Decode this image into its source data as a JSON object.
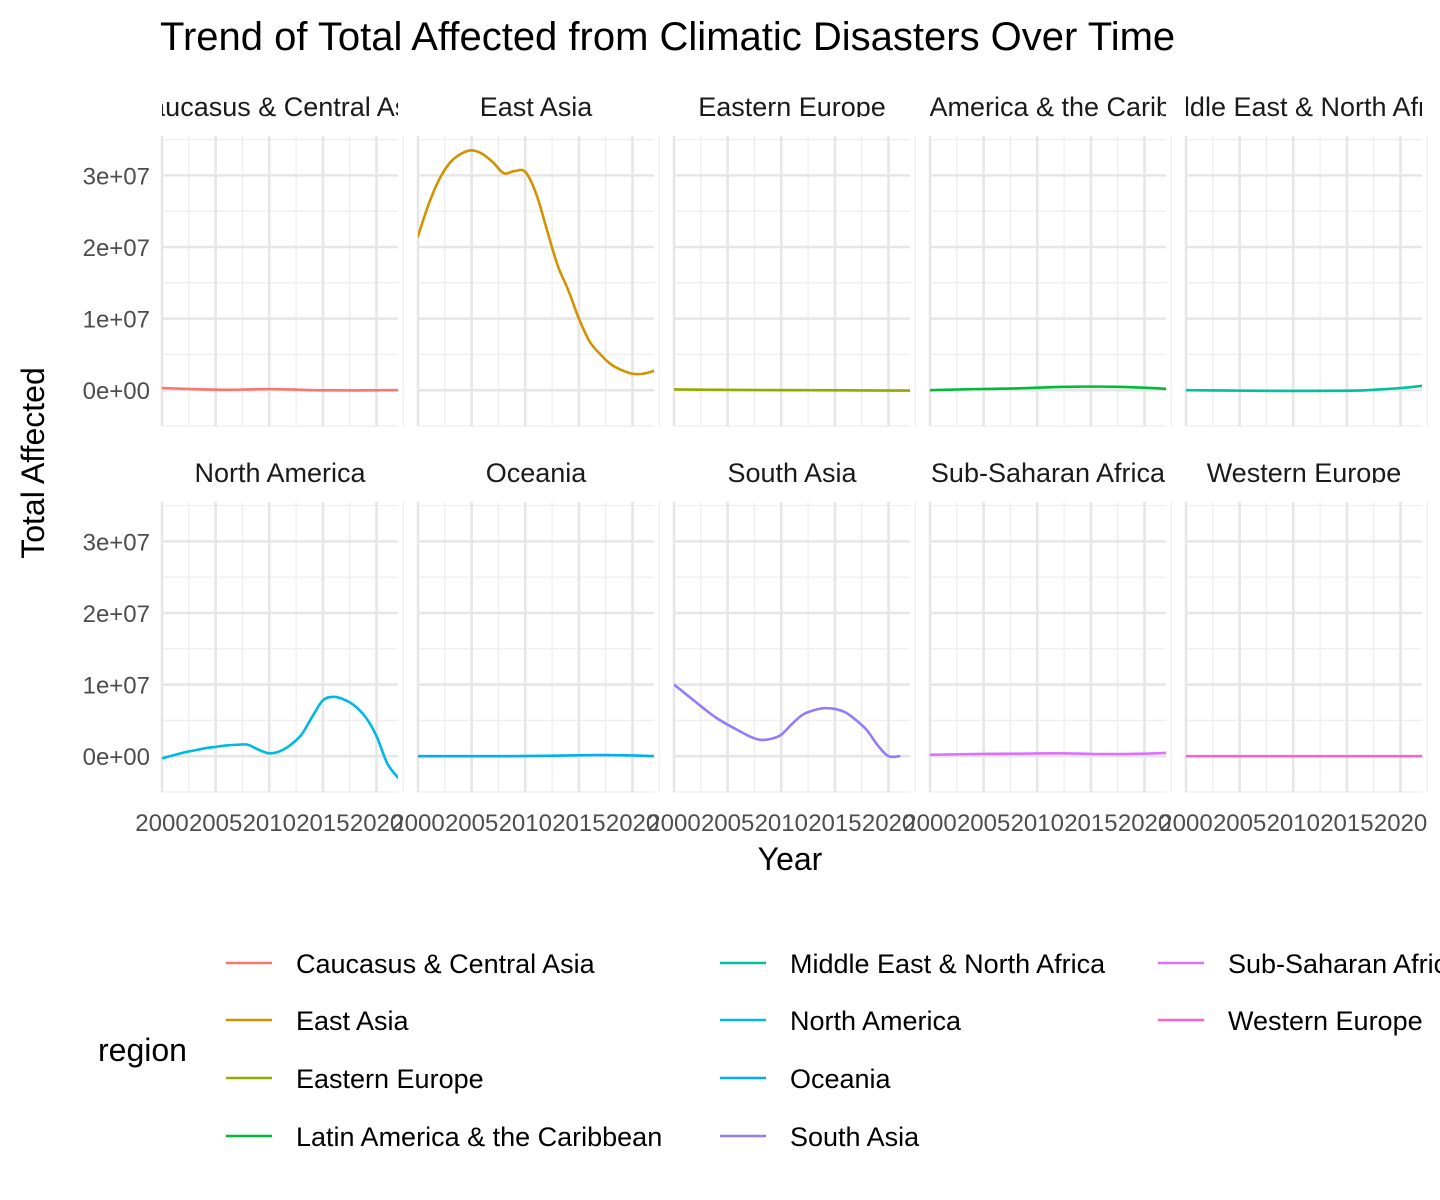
{
  "chart_data": {
    "type": "line",
    "title": "Trend of Total Affected from Climatic Disasters Over Time",
    "xlabel": "Year",
    "ylabel": "Total Affected",
    "xlim": [
      2000,
      2022
    ],
    "ylim": [
      -5000000,
      35500000
    ],
    "x_ticks": [
      2000,
      2005,
      2010,
      2015,
      2020
    ],
    "x_tick_labels": [
      "2000",
      "2005",
      "2010",
      "2015",
      "2020"
    ],
    "y_ticks": [
      0,
      10000000,
      20000000,
      30000000
    ],
    "y_tick_labels": [
      "0e+00",
      "1e+07",
      "2e+07",
      "3e+07"
    ],
    "grid": true,
    "facet_layout": "2 rows x 5 columns",
    "legend": {
      "title": "region",
      "position": "bottom",
      "columns": 3,
      "entries": [
        {
          "label": "Caucasus & Central Asia",
          "color": "#F8766D"
        },
        {
          "label": "East Asia",
          "color": "#D39200"
        },
        {
          "label": "Eastern Europe",
          "color": "#93AA00"
        },
        {
          "label": "Latin America & the Caribbean",
          "color": "#00BA38"
        },
        {
          "label": "Middle East & North Africa",
          "color": "#00C19F"
        },
        {
          "label": "North America",
          "color": "#00B9E3"
        },
        {
          "label": "Oceania",
          "color": "#00ADFA"
        },
        {
          "label": "South Asia",
          "color": "#8F7CFF"
        },
        {
          "label": "Sub-Saharan Africa",
          "color": "#DB72FB"
        },
        {
          "label": "Western Europe",
          "color": "#FF61C3"
        }
      ]
    },
    "facets": [
      {
        "strip_label": "Caucasus & Central Asia",
        "color": "#F8766D",
        "x": [
          2000,
          2002,
          2004,
          2006,
          2008,
          2010,
          2012,
          2014,
          2016,
          2018,
          2020,
          2022
        ],
        "y": [
          300000,
          200000,
          100000,
          50000,
          100000,
          150000,
          100000,
          0,
          -20000,
          -30000,
          -10000,
          0
        ]
      },
      {
        "strip_label": "East Asia",
        "color": "#D39200",
        "x": [
          2000,
          2001,
          2002,
          2003,
          2004,
          2005,
          2006,
          2007,
          2008,
          2009,
          2010,
          2011,
          2012,
          2013,
          2014,
          2015,
          2016,
          2017,
          2018,
          2019,
          2020,
          2021,
          2022
        ],
        "y": [
          21500000,
          26000000,
          29500000,
          31800000,
          33000000,
          33500000,
          33000000,
          31800000,
          30300000,
          30600000,
          30500000,
          27500000,
          22500000,
          17500000,
          14000000,
          10000000,
          6800000,
          5000000,
          3600000,
          2800000,
          2300000,
          2300000,
          2700000
        ]
      },
      {
        "strip_label": "Eastern Europe",
        "color": "#93AA00",
        "x": [
          2000,
          2004,
          2008,
          2012,
          2016,
          2020,
          2022
        ],
        "y": [
          100000,
          50000,
          20000,
          0,
          -20000,
          -50000,
          -50000
        ]
      },
      {
        "strip_label": "Latin America & the Caribbean",
        "color": "#00BA38",
        "x": [
          2000,
          2004,
          2008,
          2012,
          2014,
          2016,
          2018,
          2020,
          2022
        ],
        "y": [
          0,
          150000,
          250000,
          450000,
          500000,
          500000,
          450000,
          350000,
          200000
        ]
      },
      {
        "strip_label": "Middle East & North Africa",
        "color": "#00C19F",
        "x": [
          2000,
          2004,
          2008,
          2012,
          2016,
          2018,
          2020,
          2022
        ],
        "y": [
          0,
          -50000,
          -100000,
          -100000,
          -50000,
          100000,
          300000,
          600000
        ]
      },
      {
        "strip_label": "North America",
        "color": "#00B9E3",
        "x": [
          2000,
          2001,
          2002,
          2003,
          2004,
          2005,
          2006,
          2007,
          2008,
          2009,
          2010,
          2011,
          2012,
          2013,
          2014,
          2015,
          2016,
          2017,
          2018,
          2019,
          2020,
          2021,
          2022
        ],
        "y": [
          -300000,
          100000,
          500000,
          800000,
          1100000,
          1300000,
          1500000,
          1600000,
          1600000,
          900000,
          400000,
          700000,
          1600000,
          3000000,
          5500000,
          7800000,
          8300000,
          7900000,
          7000000,
          5400000,
          2800000,
          -1000000,
          -3000000
        ]
      },
      {
        "strip_label": "Oceania",
        "color": "#00ADFA",
        "x": [
          2000,
          2004,
          2008,
          2012,
          2016,
          2018,
          2020,
          2022
        ],
        "y": [
          0,
          0,
          0,
          50000,
          150000,
          150000,
          100000,
          0
        ]
      },
      {
        "strip_label": "South Asia",
        "color": "#8F7CFF",
        "x": [
          2000,
          2001,
          2002,
          2003,
          2004,
          2005,
          2006,
          2007,
          2008,
          2009,
          2010,
          2011,
          2012,
          2013,
          2014,
          2015,
          2016,
          2017,
          2018,
          2019,
          2020,
          2021
        ],
        "y": [
          10000000,
          8800000,
          7600000,
          6400000,
          5300000,
          4400000,
          3600000,
          2800000,
          2300000,
          2400000,
          3000000,
          4500000,
          5800000,
          6400000,
          6700000,
          6600000,
          6100000,
          5000000,
          3600000,
          1500000,
          0,
          0
        ]
      },
      {
        "strip_label": "Sub-Saharan Africa",
        "color": "#DB72FB",
        "x": [
          2000,
          2004,
          2008,
          2012,
          2016,
          2018,
          2020,
          2022
        ],
        "y": [
          200000,
          300000,
          350000,
          400000,
          300000,
          300000,
          350000,
          450000
        ]
      },
      {
        "strip_label": "Western Europe",
        "color": "#FF61C3",
        "x": [
          2000,
          2004,
          2008,
          2012,
          2016,
          2020,
          2022
        ],
        "y": [
          0,
          0,
          0,
          0,
          0,
          0,
          0
        ]
      }
    ]
  }
}
